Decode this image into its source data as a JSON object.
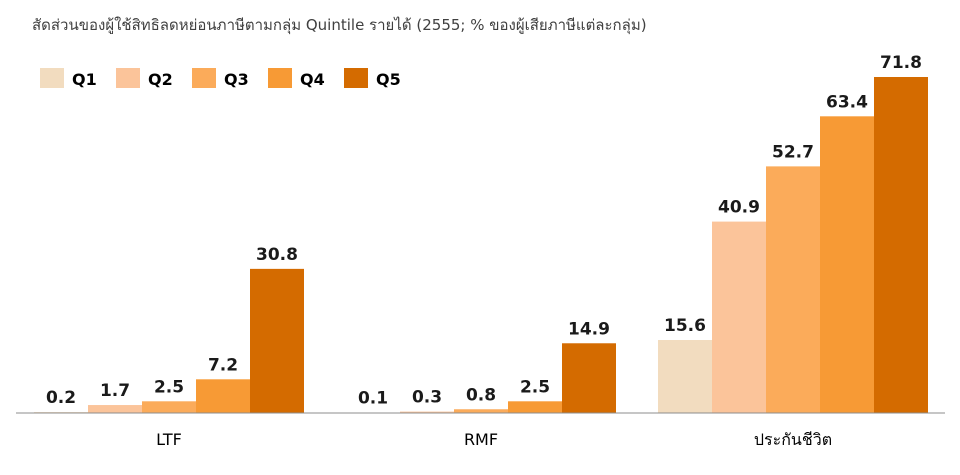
{
  "chart_data": {
    "type": "bar",
    "title": "สัดส่วนของผู้ใช้สิทธิลดหย่อนภาษีตามกลุ่ม Quintile รายได้ (2555; % ของผู้เสียภาษีแต่ละกลุ่ม)",
    "categories": [
      "LTF",
      "RMF",
      "ประกันชีวิต"
    ],
    "series": [
      {
        "name": "Q1",
        "values": [
          0.2,
          0.1,
          15.6
        ],
        "labels": [
          "0.2",
          "0.1",
          "15.6"
        ]
      },
      {
        "name": "Q2",
        "values": [
          1.7,
          0.3,
          40.9
        ],
        "labels": [
          "1.7",
          "0.3",
          "40.9"
        ]
      },
      {
        "name": "Q3",
        "values": [
          2.5,
          0.8,
          52.7
        ],
        "labels": [
          "2.5",
          "0.8",
          "52.7"
        ]
      },
      {
        "name": "Q4",
        "values": [
          7.2,
          2.5,
          63.4
        ],
        "labels": [
          "7.2",
          "2.5",
          "63.4"
        ]
      },
      {
        "name": "Q5",
        "values": [
          30.8,
          14.9,
          71.8
        ],
        "labels": [
          "30.8",
          "14.9",
          "71.8"
        ]
      }
    ],
    "colors": [
      "#F2DCBF",
      "#FBC49A",
      "#FBAB5A",
      "#F79A35",
      "#D46B00"
    ],
    "ylim": [
      0,
      71.8
    ],
    "grid": false,
    "legend_position": "top-left",
    "xlabel": "",
    "ylabel": ""
  }
}
